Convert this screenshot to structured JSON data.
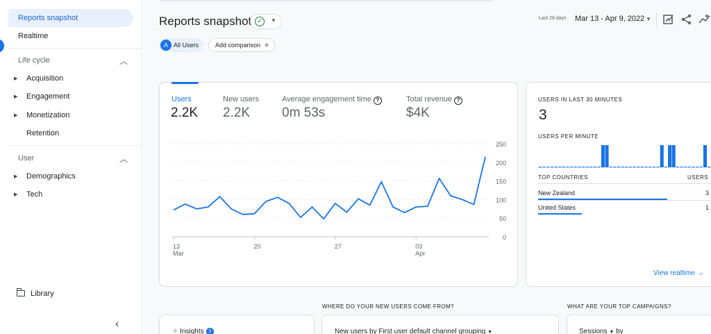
{
  "sidebar": {
    "items": [
      {
        "label": "Reports snapshot"
      },
      {
        "label": "Realtime"
      }
    ],
    "lifecycle": {
      "title": "Life cycle",
      "items": [
        "Acquisition",
        "Engagement",
        "Monetization",
        "Retention"
      ]
    },
    "user": {
      "title": "User",
      "items": [
        "Demographics",
        "Tech"
      ]
    },
    "library": "Library"
  },
  "header": {
    "title": "Reports snapshot",
    "chip_all_avatar": "A",
    "chip_all": "All Users",
    "add_comparison": "Add comparison",
    "date_small": "Last 28 days",
    "date_range": "Mar 13 - Apr 9, 2022"
  },
  "metrics": [
    {
      "label": "Users",
      "value": "2.2K"
    },
    {
      "label": "New users",
      "value": "2.2K"
    },
    {
      "label": "Average engagement time",
      "value": "0m 53s"
    },
    {
      "label": "Total revenue",
      "value": "$4K"
    }
  ],
  "chart_data": {
    "type": "line",
    "title": "",
    "series": [
      {
        "values": [
          72,
          88,
          75,
          80,
          108,
          75,
          60,
          62,
          95,
          106,
          90,
          52,
          80,
          48,
          90,
          66,
          102,
          85,
          148,
          80,
          65,
          80,
          82,
          157,
          110,
          100,
          87,
          215
        ]
      }
    ],
    "x_tick_labels": [
      {
        "index": 0,
        "line1": "13",
        "line2": "Mar"
      },
      {
        "index": 7,
        "line1": "20",
        "line2": ""
      },
      {
        "index": 14,
        "line1": "27",
        "line2": ""
      },
      {
        "index": 21,
        "line1": "03",
        "line2": "Apr"
      }
    ],
    "yticks": [
      0,
      50,
      100,
      150,
      200,
      250
    ],
    "ylim": [
      0,
      250
    ],
    "grid": true,
    "color": "#1a73e8"
  },
  "realtime": {
    "title": "USERS IN LAST 30 MINUTES",
    "value": "3",
    "per_minute_title": "USERS PER MINUTE",
    "per_minute": [
      0,
      0,
      0,
      0,
      0,
      0,
      0,
      0,
      0,
      0,
      0,
      0,
      0,
      0,
      0,
      0,
      1,
      1,
      0,
      0,
      0,
      0,
      0,
      0,
      0,
      0,
      0,
      0,
      0,
      0,
      0,
      1,
      0,
      1,
      1,
      0,
      0,
      0,
      0,
      0,
      0,
      0,
      1,
      0
    ],
    "top_countries_title": "TOP COUNTRIES",
    "users_col": "USERS",
    "countries": [
      {
        "name": "New Zealand",
        "users": "3",
        "share": 0.8
      },
      {
        "name": "United States",
        "users": "1",
        "share": 0.27
      }
    ],
    "view_link": "View realtime"
  },
  "bottom": {
    "q1": "WHERE DO YOUR NEW USERS COME FROM?",
    "q2": "WHAT ARE YOUR TOP CAMPAIGNS?",
    "insights": "Insights",
    "insights_count": "3",
    "channel_select": "New users by First user default channel grouping",
    "sessions_select": "Sessions",
    "by": "by"
  },
  "colors": {
    "accent": "#1a73e8",
    "active_bg": "#e8f0fe"
  }
}
